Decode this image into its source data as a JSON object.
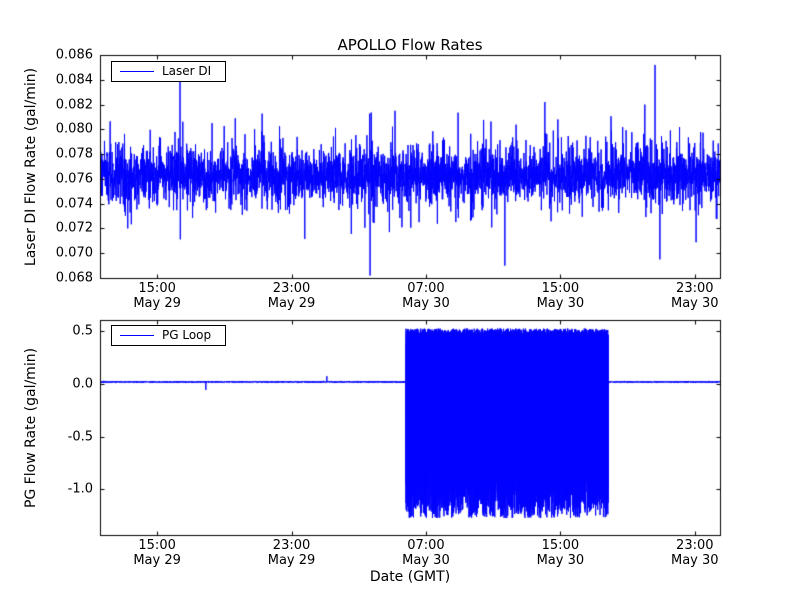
{
  "figure": {
    "background": "#ffffff",
    "line_color": "#0000ff",
    "axis_color": "#000000"
  },
  "chart_data": [
    {
      "type": "line",
      "title": "APOLLO Flow Rates",
      "ylabel": "Laser DI Flow Rate (gal/min)",
      "xlabel": "",
      "legend": "Laser DI",
      "legend_position": "upper left",
      "color": "#0000ff",
      "grid": false,
      "ylim": [
        0.068,
        0.086
      ],
      "yticks": [
        0.086,
        0.084,
        0.082,
        0.08,
        0.078,
        0.076,
        0.074,
        0.072,
        0.07,
        0.068
      ],
      "ytick_labels": [
        "0.086",
        "0.084",
        "0.082",
        "0.080",
        "0.078",
        "0.076",
        "0.074",
        "0.072",
        "0.070",
        "0.068"
      ],
      "x_hours_total": 36.9,
      "xticks": [
        {
          "t": 3.4,
          "time": "15:00",
          "date": "May 29"
        },
        {
          "t": 11.4,
          "time": "23:00",
          "date": "May 29"
        },
        {
          "t": 19.4,
          "time": "07:00",
          "date": "May 30"
        },
        {
          "t": 27.4,
          "time": "15:00",
          "date": "May 30"
        },
        {
          "t": 35.4,
          "time": "23:00",
          "date": "May 30"
        }
      ],
      "series": {
        "name": "Laser DI",
        "baseline": 0.0763,
        "noise_sd": 0.0009,
        "excursion": 0.0026,
        "typical_band": [
          0.073,
          0.08
        ],
        "spikes": [
          {
            "t": 0.6,
            "v": 0.08
          },
          {
            "t": 4.76,
            "v": 0.084
          },
          {
            "t": 6.67,
            "v": 0.0805
          },
          {
            "t": 16.07,
            "v": 0.0682
          },
          {
            "t": 17.56,
            "v": 0.0815
          },
          {
            "t": 24.1,
            "v": 0.069
          },
          {
            "t": 26.48,
            "v": 0.0822
          },
          {
            "t": 27.25,
            "v": 0.0808
          },
          {
            "t": 32.43,
            "v": 0.082
          },
          {
            "t": 33.03,
            "v": 0.0852
          },
          {
            "t": 33.32,
            "v": 0.0695
          }
        ]
      }
    },
    {
      "type": "line",
      "title": "",
      "ylabel": "PG Flow Rate (gal/min)",
      "xlabel": "Date (GMT)",
      "legend": "PG Loop",
      "legend_position": "upper left",
      "color": "#0000ff",
      "grid": false,
      "ylim": [
        -1.43,
        0.6
      ],
      "yticks": [
        0.5,
        0.0,
        -0.5,
        -1.0
      ],
      "ytick_labels": [
        "0.5",
        "0.0",
        "-0.5",
        "-1.0"
      ],
      "x_hours_total": 36.9,
      "xticks": [
        {
          "t": 3.4,
          "time": "15:00",
          "date": "May 29"
        },
        {
          "t": 11.4,
          "time": "23:00",
          "date": "May 29"
        },
        {
          "t": 19.4,
          "time": "07:00",
          "date": "May 30"
        },
        {
          "t": 27.4,
          "time": "15:00",
          "date": "May 30"
        },
        {
          "t": 35.4,
          "time": "23:00",
          "date": "May 30"
        }
      ],
      "series": {
        "name": "PG Loop",
        "idle_value": 0.015,
        "idle_noise_sd": 0.005,
        "active_start_t": 18.2,
        "active_end_t": 30.25,
        "active_upper_range": [
          0.35,
          0.52
        ],
        "active_lower_range": [
          -1.27,
          -0.6
        ],
        "blips": [
          {
            "t": 6.3,
            "v": -0.06
          },
          {
            "t": 13.5,
            "v": 0.07
          }
        ]
      }
    }
  ]
}
